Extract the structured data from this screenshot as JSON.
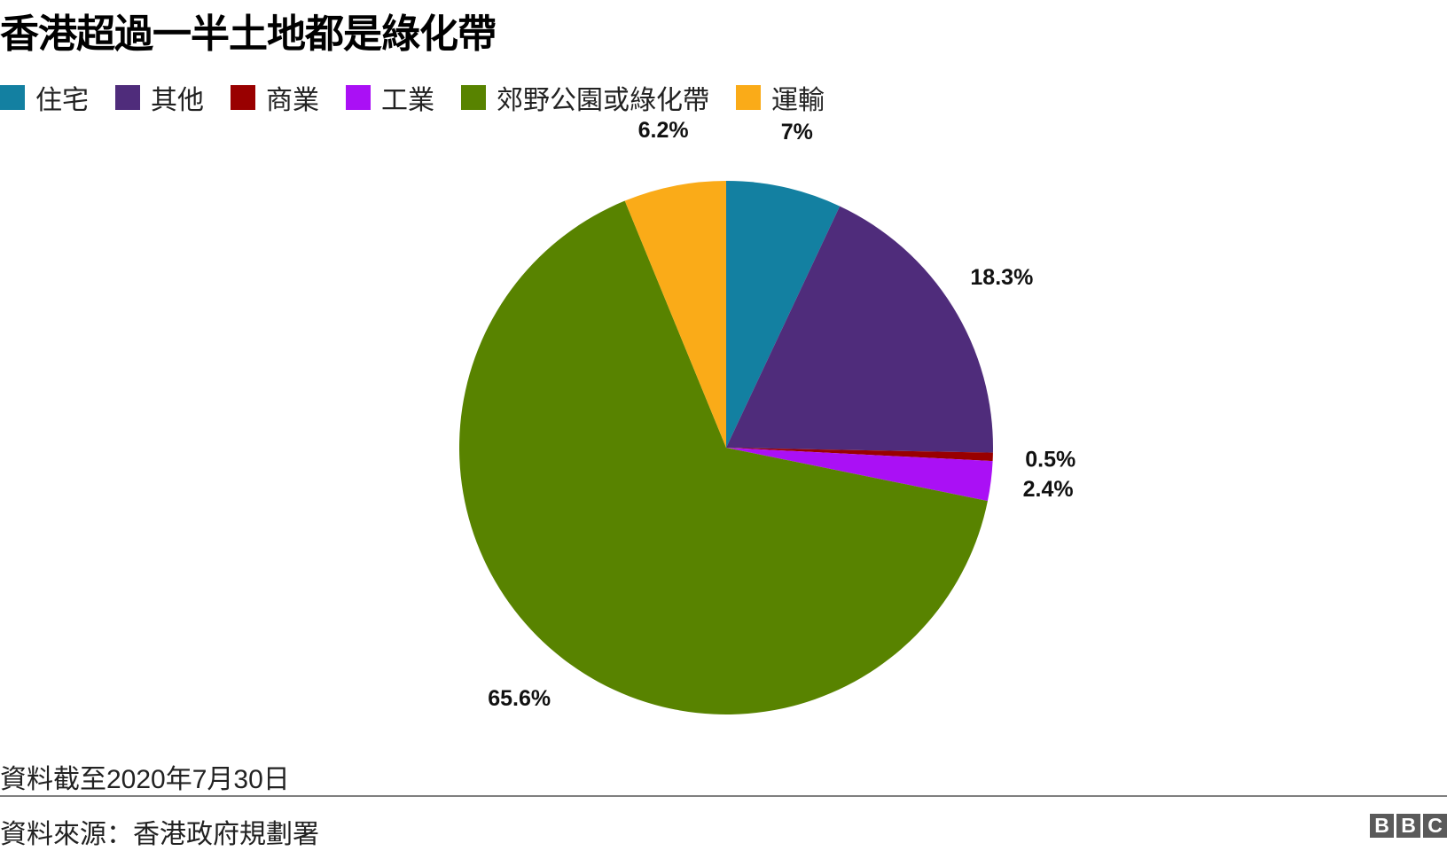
{
  "chart_data": {
    "type": "pie",
    "title": "香港超過一半土地都是綠化帶",
    "categories": [
      "住宅",
      "其他",
      "商業",
      "工業",
      "郊野公園或綠化帶",
      "運輸"
    ],
    "values": [
      7,
      18.3,
      0.5,
      2.4,
      65.6,
      6.2
    ],
    "labels": [
      "7%",
      "18.3%",
      "0.5%",
      "2.4%",
      "65.6%",
      "6.2%"
    ],
    "colors": [
      "#1380a1",
      "#4f2c7b",
      "#990000",
      "#aa10f5",
      "#588300",
      "#faab18"
    ],
    "start": "12 o'clock, clockwise",
    "legend_position": "top-left"
  },
  "note": "資料截至2020年7月30日",
  "source": "資料來源：香港政府規劃署",
  "logo": [
    "B",
    "B",
    "C"
  ]
}
